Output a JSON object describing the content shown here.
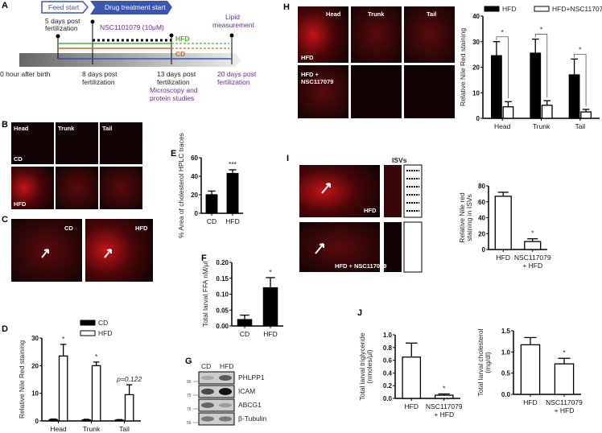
{
  "panelA": {
    "label": "A",
    "feed_start": "Feed start",
    "drug_start": "Drug treatment start",
    "t5": [
      "5 days post",
      "fertilization"
    ],
    "drug": "NSC1101079 (10μM)",
    "hfd": "HFD",
    "cd": "CD",
    "lipid": [
      "Lipid",
      "measurement"
    ],
    "t0": "0 hour after birth",
    "t8": [
      "8 days post",
      "fertilization"
    ],
    "t13": [
      "13 days post",
      "fertilization"
    ],
    "micro": [
      "Microscopy and",
      "protein studies"
    ],
    "t20": [
      "20 days post",
      "fertilization"
    ],
    "colors": {
      "hfd": "#4caf33",
      "cd": "#d2691e",
      "baseline": "#2f55b5",
      "arrow": "#3a56b0"
    }
  },
  "panelB": {
    "label": "B",
    "cols": [
      "Head",
      "Trunk",
      "Tail"
    ],
    "rows": [
      "CD",
      "HFD"
    ]
  },
  "panelC": {
    "label": "C",
    "images": [
      "CD",
      "HFD"
    ]
  },
  "panelG": {
    "label": "G",
    "lanes": [
      "CD",
      "HFD"
    ],
    "bands": [
      "PHLPP1",
      "ICAM",
      "ABCG1",
      "β-Tubulin"
    ],
    "markers": [
      "95",
      "75",
      "75",
      "56"
    ]
  },
  "panelH": {
    "label": "H",
    "cols": [
      "Head",
      "Trunk",
      "Tail"
    ],
    "rows": [
      "HFD",
      "HFD +\nNSC117079"
    ]
  },
  "panelI": {
    "label": "I",
    "isv_title": "ISVs",
    "images": [
      "HFD",
      "HFD + NSC117079"
    ]
  },
  "panelJ": {
    "label": "J"
  },
  "chart_data": [
    {
      "id": "D",
      "label": "D",
      "type": "bar",
      "categories": [
        "Head",
        "Trunk",
        "Tail"
      ],
      "ylabel": "Relative  Nile Red staining",
      "ylim": [
        0,
        30
      ],
      "yticks": [
        "0",
        "10",
        "20",
        "30"
      ],
      "series": [
        {
          "name": "CD",
          "values": [
            0.5,
            0.4,
            0.3
          ],
          "errors": [
            0.2,
            0.2,
            0.2
          ],
          "fill": "#000000"
        },
        {
          "name": "HFD",
          "values": [
            23.5,
            20,
            9.5
          ],
          "errors": [
            4.2,
            1.3,
            3.6
          ],
          "fill": "#ffffff"
        }
      ],
      "annotations": [
        "*",
        "*",
        "p=0.122"
      ],
      "legend": "top"
    },
    {
      "id": "E",
      "label": "E",
      "type": "bar",
      "categories": [
        "CD",
        "HFD"
      ],
      "ylabel": "% Area of cholesterol HPLC traces",
      "ylim": [
        0,
        60
      ],
      "yticks": [
        "0",
        "20",
        "40",
        "60"
      ],
      "series": [
        {
          "values": [
            20,
            43
          ],
          "errors": [
            4,
            4
          ],
          "fill": "#000000"
        }
      ],
      "annotations": [
        "",
        "***"
      ]
    },
    {
      "id": "F",
      "label": "F",
      "type": "bar",
      "categories": [
        "CD",
        "HFD"
      ],
      "ylabel": "Total larval FFA nM/μl",
      "ylim": [
        0,
        0.2
      ],
      "yticks": [
        "0.00",
        "0.05",
        "0.10",
        "0.15",
        "0.20"
      ],
      "series": [
        {
          "values": [
            0.02,
            0.12
          ],
          "errors": [
            0.014,
            0.032
          ],
          "fill": "#000000"
        }
      ],
      "annotations": [
        "",
        "*"
      ]
    },
    {
      "id": "H",
      "label": "H",
      "type": "bar",
      "categories": [
        "Head",
        "Trunk",
        "Tail"
      ],
      "ylabel": "Relative  Nile Red staining",
      "ylim": [
        0,
        40
      ],
      "yticks": [
        "0",
        "10",
        "20",
        "30",
        "40"
      ],
      "series": [
        {
          "name": "HFD",
          "values": [
            24.5,
            25.5,
            17
          ],
          "errors": [
            5.5,
            5.5,
            6.2
          ],
          "fill": "#000000"
        },
        {
          "name": "HFD+NSC117079",
          "values": [
            4.5,
            5.1,
            2.5
          ],
          "errors": [
            2,
            1.8,
            1
          ],
          "fill": "#ffffff"
        }
      ],
      "annotations": [
        "*",
        "*",
        "*"
      ],
      "legend": "top"
    },
    {
      "id": "I",
      "type": "bar",
      "categories": [
        "HFD",
        "NSC117079\n+ HFD"
      ],
      "ylabel": "Relative Nile red\nstaining in ISVs",
      "ylim": [
        0,
        80
      ],
      "yticks": [
        "0",
        "20",
        "40",
        "60",
        "80"
      ],
      "series": [
        {
          "values": [
            67,
            10
          ],
          "errors": [
            5,
            3.5
          ],
          "fill": "#ffffff"
        }
      ],
      "annotations": [
        "",
        "*"
      ]
    },
    {
      "id": "J1",
      "type": "bar",
      "categories": [
        "HFD",
        "NSC117079\n+ HFD"
      ],
      "ylabel": "Total larval triglyceride\n(nmoles/μl)",
      "ylim": [
        0,
        1.0
      ],
      "yticks": [
        "0.0",
        "0.2",
        "0.4",
        "0.6",
        "0.8",
        "1.0"
      ],
      "series": [
        {
          "values": [
            0.65,
            0.05
          ],
          "errors": [
            0.22,
            0.02
          ],
          "fill": "#ffffff"
        }
      ],
      "annotations": [
        "",
        "*"
      ]
    },
    {
      "id": "J2",
      "type": "bar",
      "categories": [
        "HFD",
        "NSC117079\n+ HFD"
      ],
      "ylabel": "Total larval cholesterol\n(mg/dl)",
      "ylim": [
        0,
        1.5
      ],
      "yticks": [
        "0.0",
        "0.5",
        "1.0",
        "1.5"
      ],
      "series": [
        {
          "values": [
            1.17,
            0.72
          ],
          "errors": [
            0.17,
            0.13
          ],
          "fill": "#ffffff"
        }
      ],
      "annotations": [
        "",
        "*"
      ]
    }
  ]
}
